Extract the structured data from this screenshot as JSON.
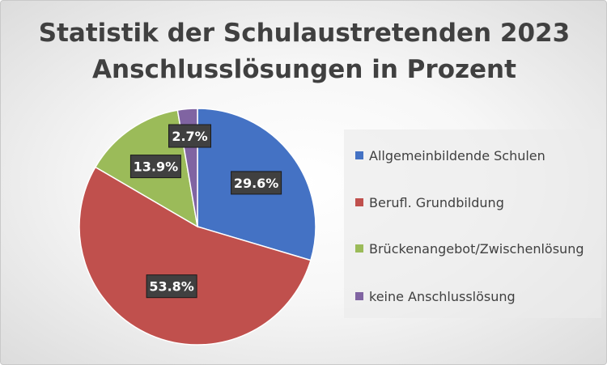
{
  "chart_data": {
    "type": "pie",
    "title": [
      "Statistik der Schulaustretenden 2023",
      "Anschlusslösungen in Prozent"
    ],
    "slices": [
      {
        "label": "Allgemeinbildende Schulen",
        "value": 29.6,
        "display": "29.6%",
        "color": "#4472C4"
      },
      {
        "label": "Berufl. Grundbildung",
        "value": 53.8,
        "display": "53.8%",
        "color": "#C0504D"
      },
      {
        "label": "Brückenangebot/Zwischenlösung",
        "value": 13.9,
        "display": "13.9%",
        "color": "#9BBB59"
      },
      {
        "label": "keine Anschlusslösung",
        "value": 2.7,
        "display": "2.7%",
        "color": "#8064A2"
      }
    ],
    "legend_position": "right"
  }
}
